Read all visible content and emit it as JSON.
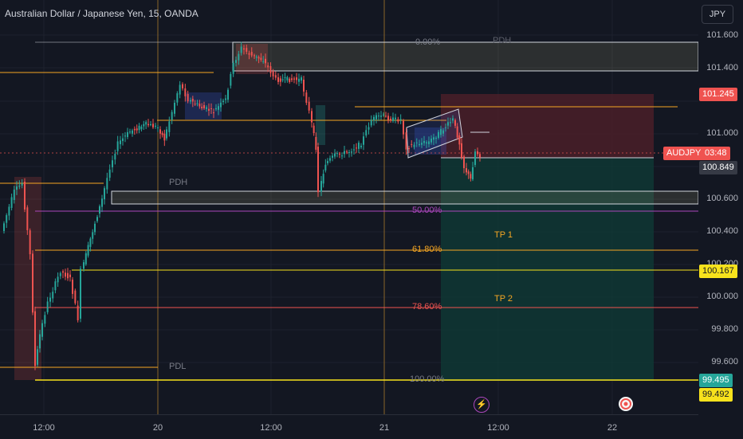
{
  "header": {
    "title": "Australian Dollar / Japanese Yen, 15, OANDA",
    "currency_button": "JPY"
  },
  "price_axis": {
    "ticks": [
      "101.600",
      "101.400",
      "101.000",
      "100.600",
      "100.400",
      "100.200",
      "100.000",
      "99.800",
      "99.600"
    ],
    "tags": {
      "upper": "101.245",
      "symbol": "AUDJPY",
      "countdown": "03:48",
      "current": "100.849",
      "level_mid": "100.167",
      "level_low_1": "99.495",
      "level_low_2": "99.492"
    }
  },
  "time_axis": {
    "ticks": [
      "12:00",
      "20",
      "12:00",
      "21",
      "12:00",
      "22"
    ]
  },
  "fib_levels": [
    "0.00%",
    "50.00%",
    "61.80%",
    "78.60%",
    "100.00%"
  ],
  "annotations": {
    "pdh": "PDH",
    "pdl": "PDL",
    "pdh_right": "PDH",
    "tp1": "TP 1",
    "tp2": "TP 2"
  },
  "icons": [
    "lightning-icon",
    "target-icon"
  ],
  "colors": {
    "background": "#131722",
    "up": "#26a69a",
    "down": "#ef5350",
    "fib": "#f5a623",
    "yellow": "#f7e21c",
    "purple": "#ab47bc",
    "target_zone": "#0f3a36",
    "stop_zone": "#4a1f28"
  }
}
